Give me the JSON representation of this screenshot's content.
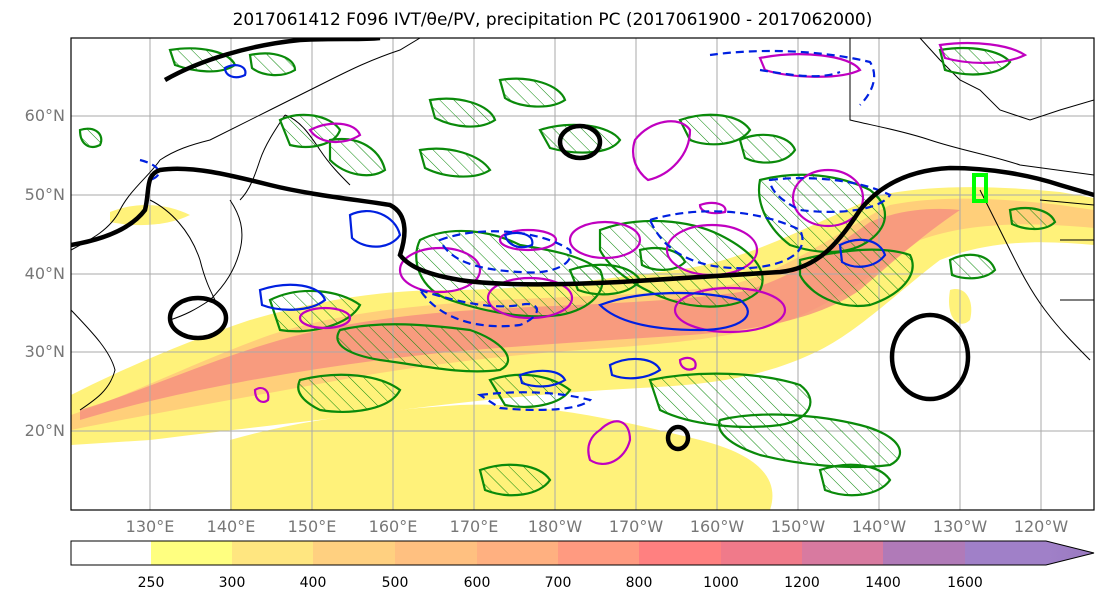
{
  "title": "2017061412 F096 IVT/θe/PV, precipitation PC (2017061900 - 2017062000)",
  "map": {
    "lat_labels": [
      "60°N",
      "50°N",
      "40°N",
      "30°N",
      "20°N"
    ],
    "lon_labels": [
      "130°E",
      "140°E",
      "150°E",
      "160°E",
      "170°E",
      "180°W",
      "170°W",
      "160°W",
      "150°W",
      "140°W",
      "130°W",
      "120°W"
    ]
  },
  "colorbar": {
    "ticks": [
      "250",
      "300",
      "400",
      "500",
      "600",
      "700",
      "800",
      "1000",
      "1200",
      "1400",
      "1600"
    ],
    "colors": [
      "#ffffff",
      "#ffff80",
      "#ffe680",
      "#ffd080",
      "#ffc080",
      "#ffb080",
      "#ff9a80",
      "#ff8080",
      "#f07a8a",
      "#d87aa0",
      "#b07ab8",
      "#a080c8"
    ]
  },
  "colors": {
    "ivt_low": "#fff27a",
    "ivt_mid": "#ffcf7a",
    "ivt_high": "#f58a80",
    "precip_contour": "#0a8a0a",
    "pv_contour": "#000000",
    "theta_pos": "#c000c0",
    "theta_neg": "#0020e0"
  }
}
